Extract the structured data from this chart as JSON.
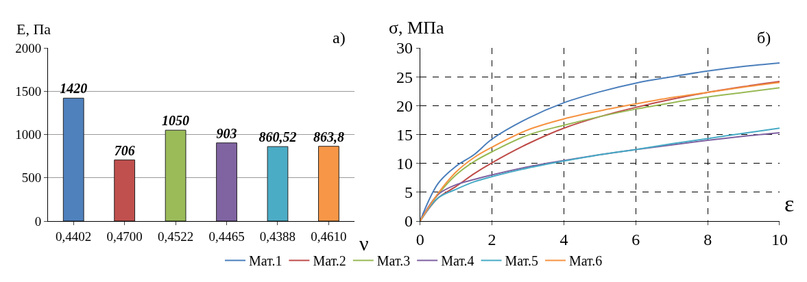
{
  "chart_data": [
    {
      "type": "bar",
      "title": "а)",
      "ylabel": "E, Па",
      "xlabel": "ν",
      "categories": [
        "0,4402",
        "0,4700",
        "0,4522",
        "0,4465",
        "0,4388",
        "0,4610"
      ],
      "values": [
        1420,
        706,
        1050,
        903,
        860.52,
        863.8
      ],
      "value_labels": [
        "1420",
        "706",
        "1050",
        "903",
        "860,52",
        "863,8"
      ],
      "colors": [
        "#4f81bd",
        "#c0504d",
        "#9bbb59",
        "#8064a2",
        "#4bacc6",
        "#f79646"
      ],
      "ylim": [
        0,
        2000
      ],
      "yticks": [
        0,
        500,
        1000,
        1500,
        2000
      ],
      "grid": "y"
    },
    {
      "type": "line",
      "title": "б)",
      "ylabel": "σ, МПа",
      "xlabel": "ε",
      "x": [
        0,
        0.5,
        1,
        1.5,
        2,
        3,
        4,
        5,
        6,
        7,
        8,
        9,
        10
      ],
      "series": [
        {
          "name": "Мат.1",
          "color": "#4a7ebb",
          "values": [
            0,
            6.5,
            9.5,
            11.5,
            14.2,
            17.8,
            20.5,
            22.4,
            23.9,
            25.0,
            26.0,
            26.8,
            27.4
          ]
        },
        {
          "name": "Мат.2",
          "color": "#be4b48",
          "values": [
            0,
            4,
            6,
            8.2,
            10.1,
            13.4,
            16.1,
            18.1,
            19.7,
            21.1,
            22.3,
            23.3,
            24.2
          ]
        },
        {
          "name": "Мат.3",
          "color": "#98b954",
          "values": [
            0,
            4.6,
            8,
            10.3,
            12,
            14.9,
            16.6,
            18.1,
            19.4,
            20.5,
            21.5,
            22.3,
            23.1
          ]
        },
        {
          "name": "Мат.4",
          "color": "#7d60a0",
          "values": [
            0,
            4.6,
            6.3,
            7.2,
            8,
            9.4,
            10.5,
            11.5,
            12.4,
            13.2,
            14.0,
            14.7,
            15.3
          ]
        },
        {
          "name": "Мат.5",
          "color": "#46aac5",
          "values": [
            0,
            4,
            5.5,
            6.8,
            7.7,
            9.2,
            10.4,
            11.5,
            12.4,
            13.4,
            14.3,
            15.2,
            16.1
          ]
        },
        {
          "name": "Мат.6",
          "color": "#f69240",
          "values": [
            0,
            4.8,
            8.5,
            11,
            12.8,
            15.8,
            17.7,
            19.1,
            20.3,
            21.4,
            22.3,
            23.2,
            24.0
          ]
        }
      ],
      "xlim": [
        0,
        10
      ],
      "xticks": [
        0,
        2,
        4,
        6,
        8,
        10
      ],
      "ylim": [
        0,
        30
      ],
      "yticks": [
        0,
        5,
        10,
        15,
        20,
        25,
        30
      ],
      "grid": true,
      "legend": "bottom"
    }
  ]
}
